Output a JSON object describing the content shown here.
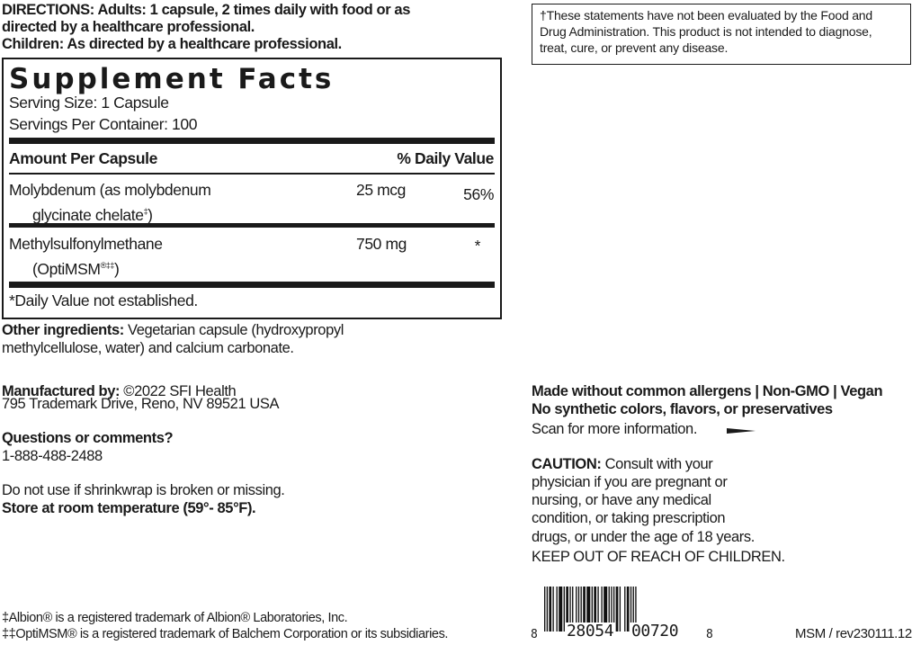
{
  "directions": {
    "label": "DIRECTIONS:",
    "lines": [
      "Adults: 1 capsule, 2 times daily with food or as",
      "directed by a healthcare professional.",
      "Children: As directed by a healthcare professional."
    ]
  },
  "facts": {
    "title": "Supplement Facts",
    "serving_size": "Serving Size: 1 Capsule",
    "servings_per_container": "Servings Per Container: 100",
    "header_amount": "Amount Per Capsule",
    "header_dv": "% Daily Value",
    "rows": [
      {
        "name1": "Molybdenum (as molybdenum",
        "name2": "glycinate chelate",
        "mark": "‡",
        "name2_end": ")",
        "amount": "25 mcg",
        "dv": "56%"
      },
      {
        "name1": "Methylsulfonylmethane",
        "name2": "(OptiMSM",
        "mark": "®‡‡",
        "name2_end": ")",
        "amount": "750 mg",
        "dv": "*"
      }
    ],
    "footnote": "*Daily Value not established."
  },
  "other": {
    "label": "Other ingredients:",
    "line1": " Vegetarian capsule (hydroxypropyl",
    "line2": "methylcellulose, water) and calcium carbonate."
  },
  "manufacturer": {
    "label": "Manufactured by:",
    "name": " ©2022 SFI Health",
    "address": "795 Trademark Drive, Reno, NV 89521 USA"
  },
  "questions": {
    "label": "Questions or comments?",
    "phone": "1-888-488-2488"
  },
  "warning": "Do not use if shrinkwrap is broken or missing.",
  "storage": "Store at room temperature (59°- 85°F).",
  "trademarks": [
    "‡Albion® is a registered trademark of Albion® Laboratories, Inc.",
    "‡‡OptiMSM® is a registered trademark of Balchem Corporation or its subsidiaries."
  ],
  "disclaimer": [
    "†These statements have not been evaluated by the Food and",
    "Drug Administration. This product is not intended to diagnose,",
    "treat, cure, or prevent any disease."
  ],
  "claims": [
    "Made without common allergens | Non-GMO | Vegan",
    "No synthetic colors, flavors, or preservatives"
  ],
  "scan": "Scan for more information.",
  "caution": {
    "label": "CAUTION:",
    "lines": [
      " Consult with your",
      "physician if you are pregnant or",
      "nursing, or have any medical",
      "condition, or taking prescription",
      "drugs, or under the age of 18 years."
    ],
    "keep_out": "KEEP OUT OF REACH OF CHILDREN."
  },
  "barcode": {
    "left": "8",
    "middle1": "28054",
    "middle2": "00720",
    "right": "8"
  },
  "revision": "MSM / rev230111.12"
}
